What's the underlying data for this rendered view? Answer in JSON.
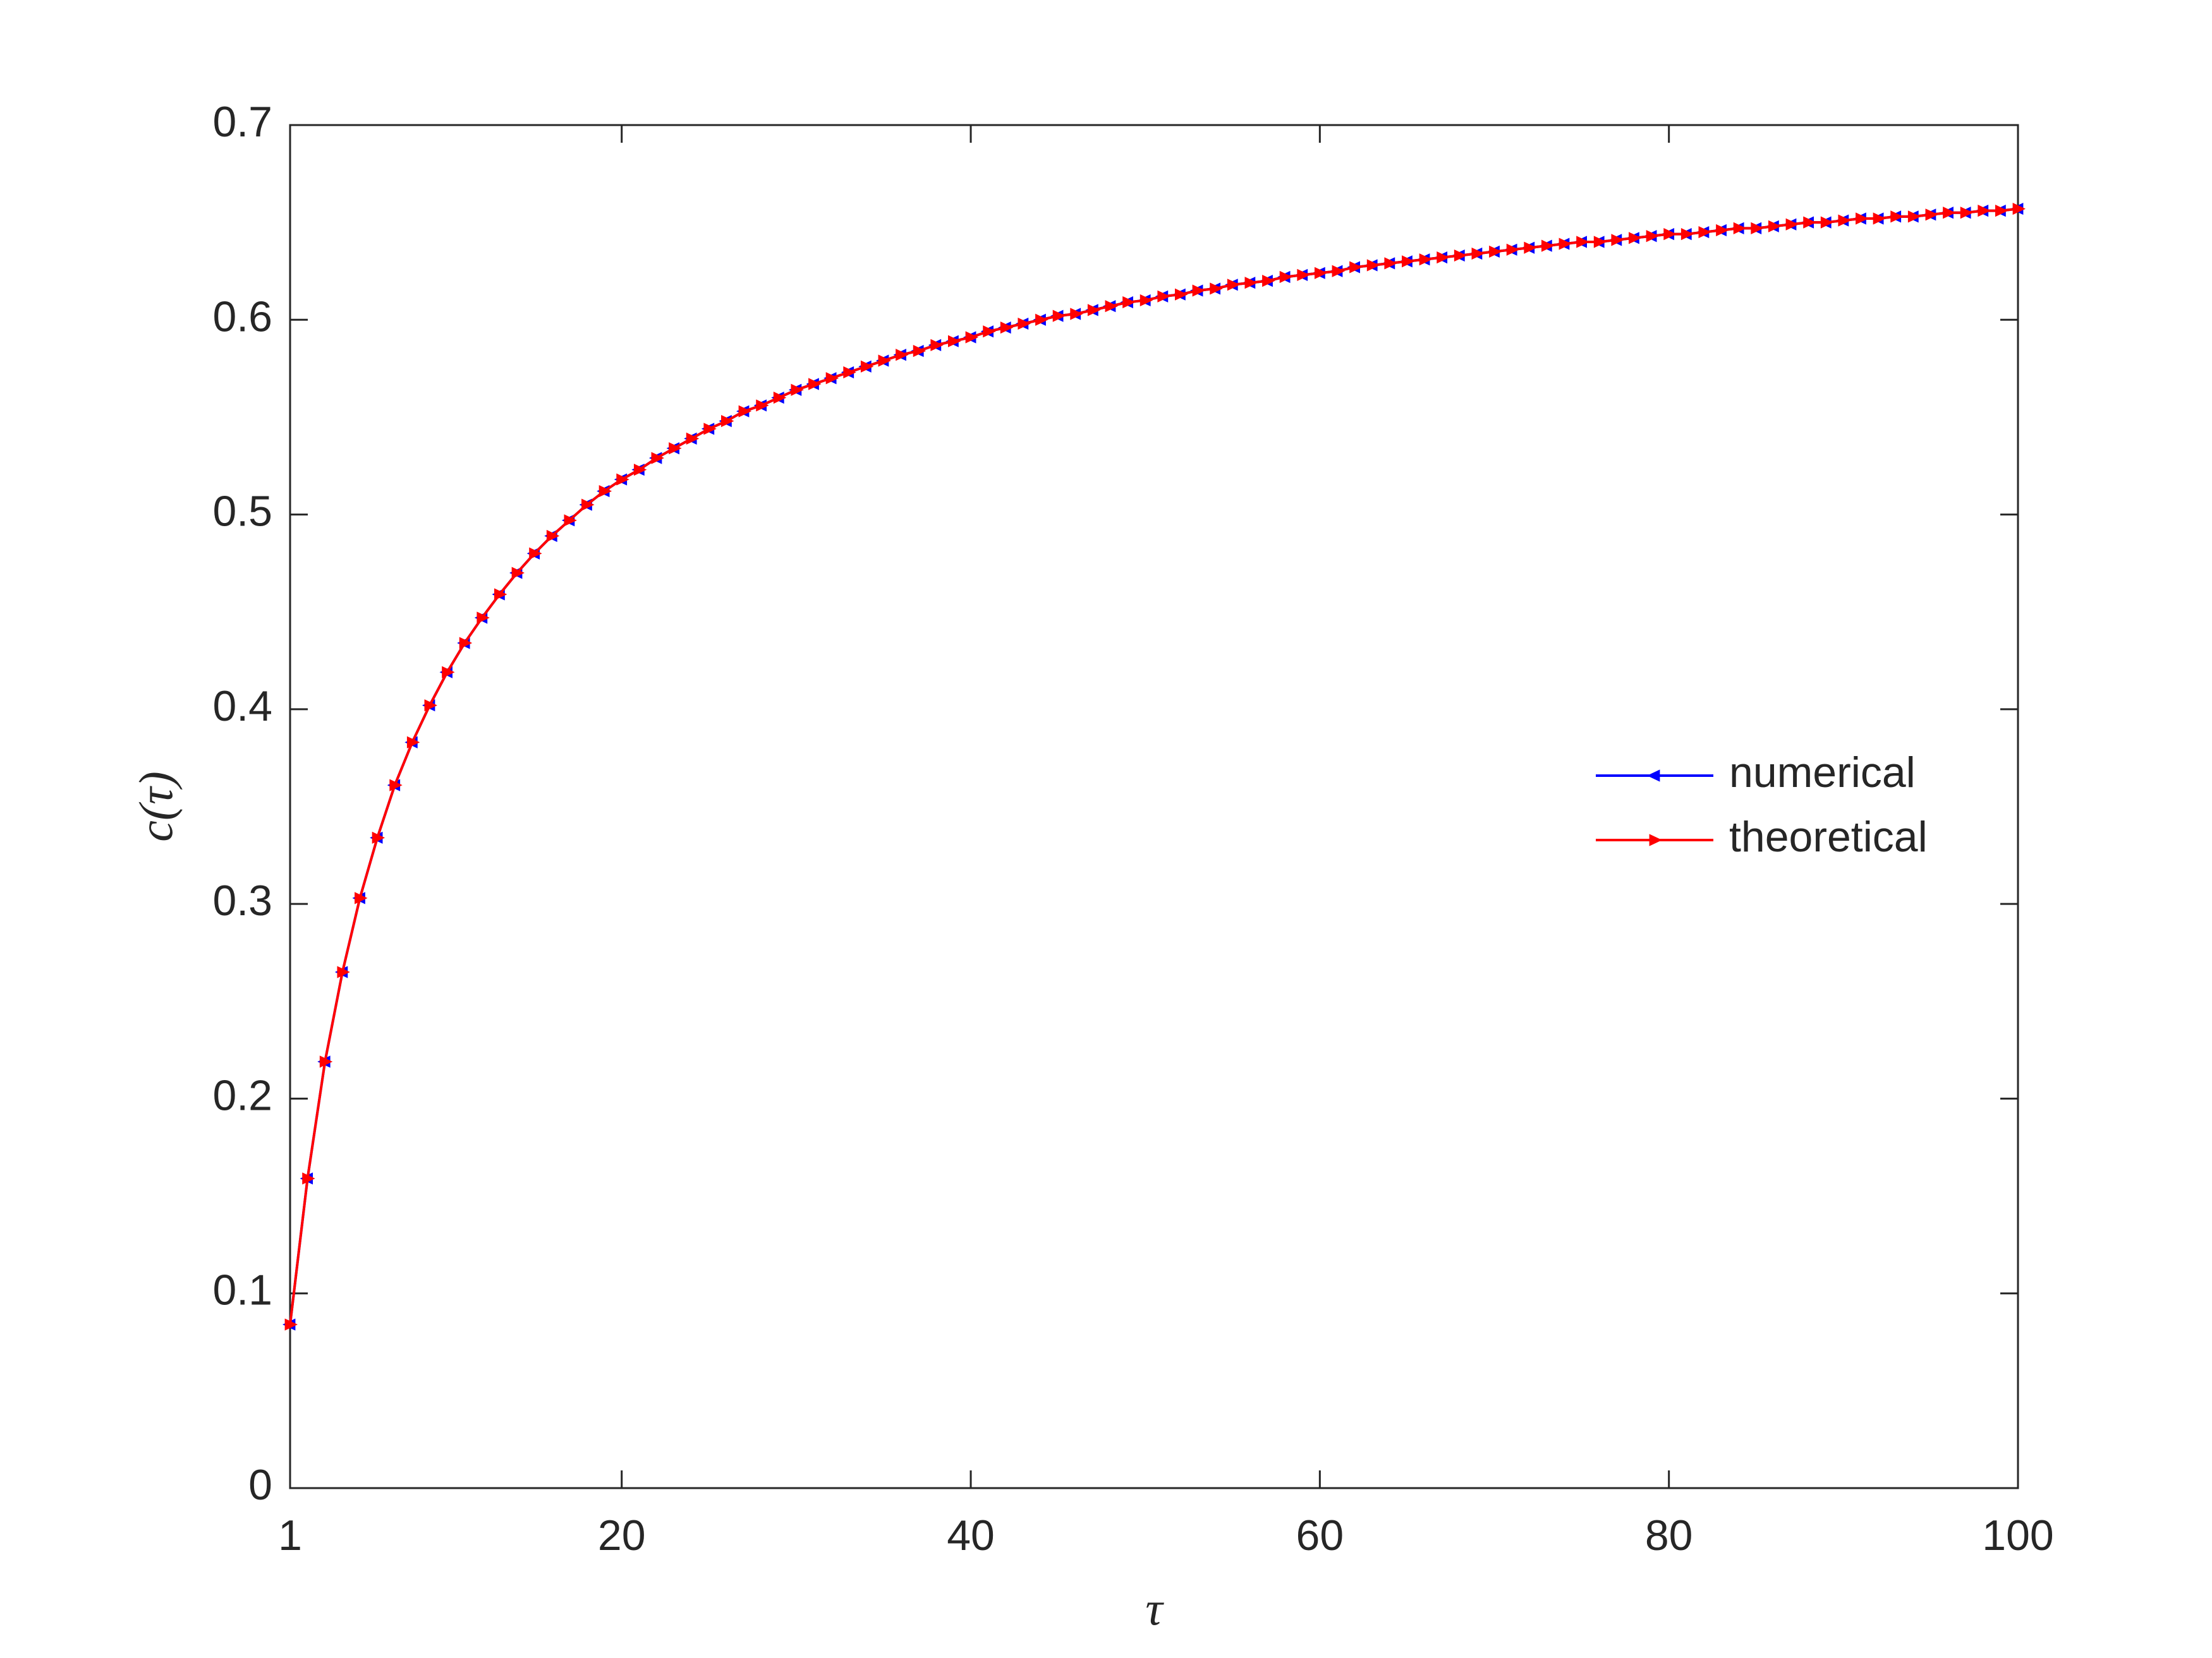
{
  "chart_data": {
    "type": "line",
    "xlabel": "τ",
    "ylabel": "c(τ)",
    "x": [
      1,
      2,
      3,
      4,
      5,
      6,
      7,
      8,
      9,
      10,
      11,
      12,
      13,
      14,
      15,
      16,
      17,
      18,
      19,
      20,
      21,
      22,
      23,
      24,
      25,
      26,
      27,
      28,
      29,
      30,
      31,
      32,
      33,
      34,
      35,
      36,
      37,
      38,
      39,
      40,
      41,
      42,
      43,
      44,
      45,
      46,
      47,
      48,
      49,
      50,
      51,
      52,
      53,
      54,
      55,
      56,
      57,
      58,
      59,
      60,
      61,
      62,
      63,
      64,
      65,
      66,
      67,
      68,
      69,
      70,
      71,
      72,
      73,
      74,
      75,
      76,
      77,
      78,
      79,
      80,
      81,
      82,
      83,
      84,
      85,
      86,
      87,
      88,
      89,
      90,
      91,
      92,
      93,
      94,
      95,
      96,
      97,
      98,
      99,
      100
    ],
    "series": [
      {
        "name": "numerical",
        "color": "#0000ff",
        "marker": "triangle-left",
        "values": [
          0.084,
          0.159,
          0.219,
          0.265,
          0.303,
          0.334,
          0.361,
          0.383,
          0.402,
          0.419,
          0.434,
          0.447,
          0.459,
          0.47,
          0.48,
          0.489,
          0.497,
          0.505,
          0.512,
          0.518,
          0.523,
          0.529,
          0.534,
          0.539,
          0.544,
          0.548,
          0.553,
          0.556,
          0.56,
          0.564,
          0.567,
          0.57,
          0.573,
          0.576,
          0.579,
          0.582,
          0.584,
          0.587,
          0.589,
          0.591,
          0.594,
          0.596,
          0.598,
          0.6,
          0.602,
          0.603,
          0.605,
          0.607,
          0.609,
          0.61,
          0.612,
          0.613,
          0.615,
          0.616,
          0.618,
          0.619,
          0.62,
          0.622,
          0.623,
          0.624,
          0.625,
          0.627,
          0.628,
          0.629,
          0.63,
          0.631,
          0.632,
          0.633,
          0.634,
          0.635,
          0.636,
          0.637,
          0.638,
          0.639,
          0.64,
          0.64,
          0.641,
          0.642,
          0.643,
          0.644,
          0.644,
          0.645,
          0.646,
          0.647,
          0.647,
          0.648,
          0.649,
          0.65,
          0.65,
          0.651,
          0.652,
          0.652,
          0.653,
          0.653,
          0.654,
          0.655,
          0.655,
          0.656,
          0.656,
          0.657
        ]
      },
      {
        "name": "theoretical",
        "color": "#ff0000",
        "marker": "triangle-right",
        "values": [
          0.084,
          0.159,
          0.219,
          0.265,
          0.303,
          0.334,
          0.361,
          0.383,
          0.402,
          0.419,
          0.434,
          0.447,
          0.459,
          0.47,
          0.48,
          0.489,
          0.497,
          0.505,
          0.512,
          0.518,
          0.523,
          0.529,
          0.534,
          0.539,
          0.544,
          0.548,
          0.553,
          0.556,
          0.56,
          0.564,
          0.567,
          0.57,
          0.573,
          0.576,
          0.579,
          0.582,
          0.584,
          0.587,
          0.589,
          0.591,
          0.594,
          0.596,
          0.598,
          0.6,
          0.602,
          0.603,
          0.605,
          0.607,
          0.609,
          0.61,
          0.612,
          0.613,
          0.615,
          0.616,
          0.618,
          0.619,
          0.62,
          0.622,
          0.623,
          0.624,
          0.625,
          0.627,
          0.628,
          0.629,
          0.63,
          0.631,
          0.632,
          0.633,
          0.634,
          0.635,
          0.636,
          0.637,
          0.638,
          0.639,
          0.64,
          0.64,
          0.641,
          0.642,
          0.643,
          0.644,
          0.644,
          0.645,
          0.646,
          0.647,
          0.647,
          0.648,
          0.649,
          0.65,
          0.65,
          0.651,
          0.652,
          0.652,
          0.653,
          0.653,
          0.654,
          0.655,
          0.655,
          0.656,
          0.656,
          0.657
        ]
      }
    ],
    "xlim": [
      1,
      100
    ],
    "xticks": [
      1,
      20,
      40,
      60,
      80,
      100
    ],
    "ylim": [
      0,
      0.7
    ],
    "yticks": [
      0,
      0.1,
      0.2,
      0.3,
      0.4,
      0.5,
      0.6,
      0.7
    ],
    "grid": false,
    "legend": "east"
  }
}
